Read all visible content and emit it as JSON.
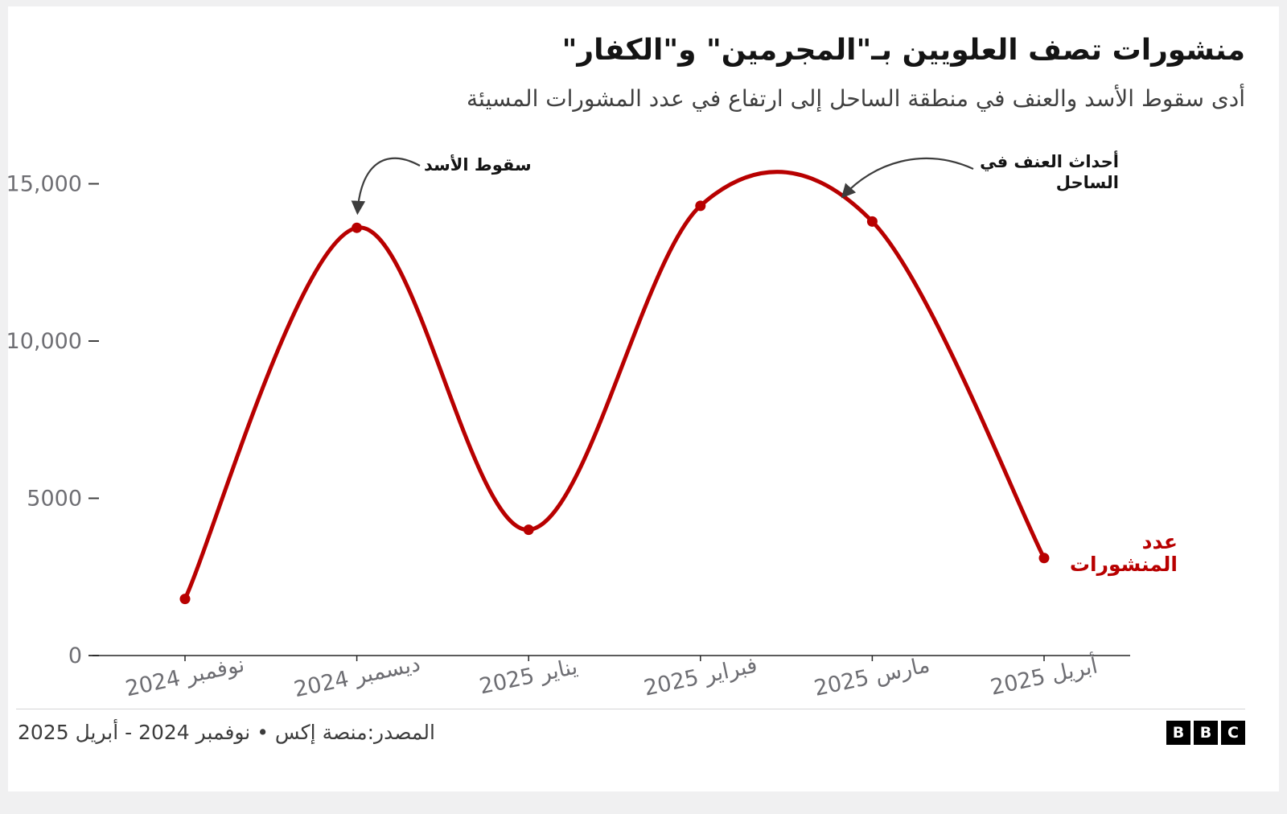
{
  "chart_data": {
    "type": "line",
    "title": "منشورات تصف العلويين بـ\"المجرمين\" و\"الكفار\"",
    "subtitle": "أدى سقوط الأسد والعنف في منطقة الساحل إلى ارتفاع في عدد المشورات المسيئة",
    "categories": [
      "نوفمبر 2024",
      "ديسمبر 2024",
      "يناير 2025",
      "فبراير 2025",
      "مارس 2025",
      "أبريل 2025"
    ],
    "values": [
      1800,
      13600,
      4000,
      14300,
      13800,
      3100
    ],
    "series_label": "عدد المنشورات",
    "xlabel": "",
    "ylabel": "",
    "ylim": [
      0,
      15500
    ],
    "y_ticks": [
      {
        "value": 0,
        "label": "0"
      },
      {
        "value": 5000,
        "label": "5000"
      },
      {
        "value": 10000,
        "label": "10,000"
      },
      {
        "value": 15000,
        "label": "15,000"
      }
    ],
    "grid": false,
    "legend": "none",
    "line_color": "#b80000",
    "annotations": [
      {
        "text": "سقوط الأسد",
        "points_to": "ديسمبر 2024"
      },
      {
        "text": "أحداث العنف في الساحل",
        "points_to": "مارس 2025"
      }
    ]
  },
  "footer": {
    "source": "المصدر:منصة إكس • نوفمبر 2024 - أبريل 2025",
    "logo_letters": [
      "B",
      "B",
      "C"
    ]
  },
  "colors": {
    "page_background": "#f0f0f1",
    "card_background": "#ffffff",
    "line": "#b80000",
    "axis": "#262626",
    "tick_label": "#6e6e73",
    "annotation": "#141414"
  }
}
